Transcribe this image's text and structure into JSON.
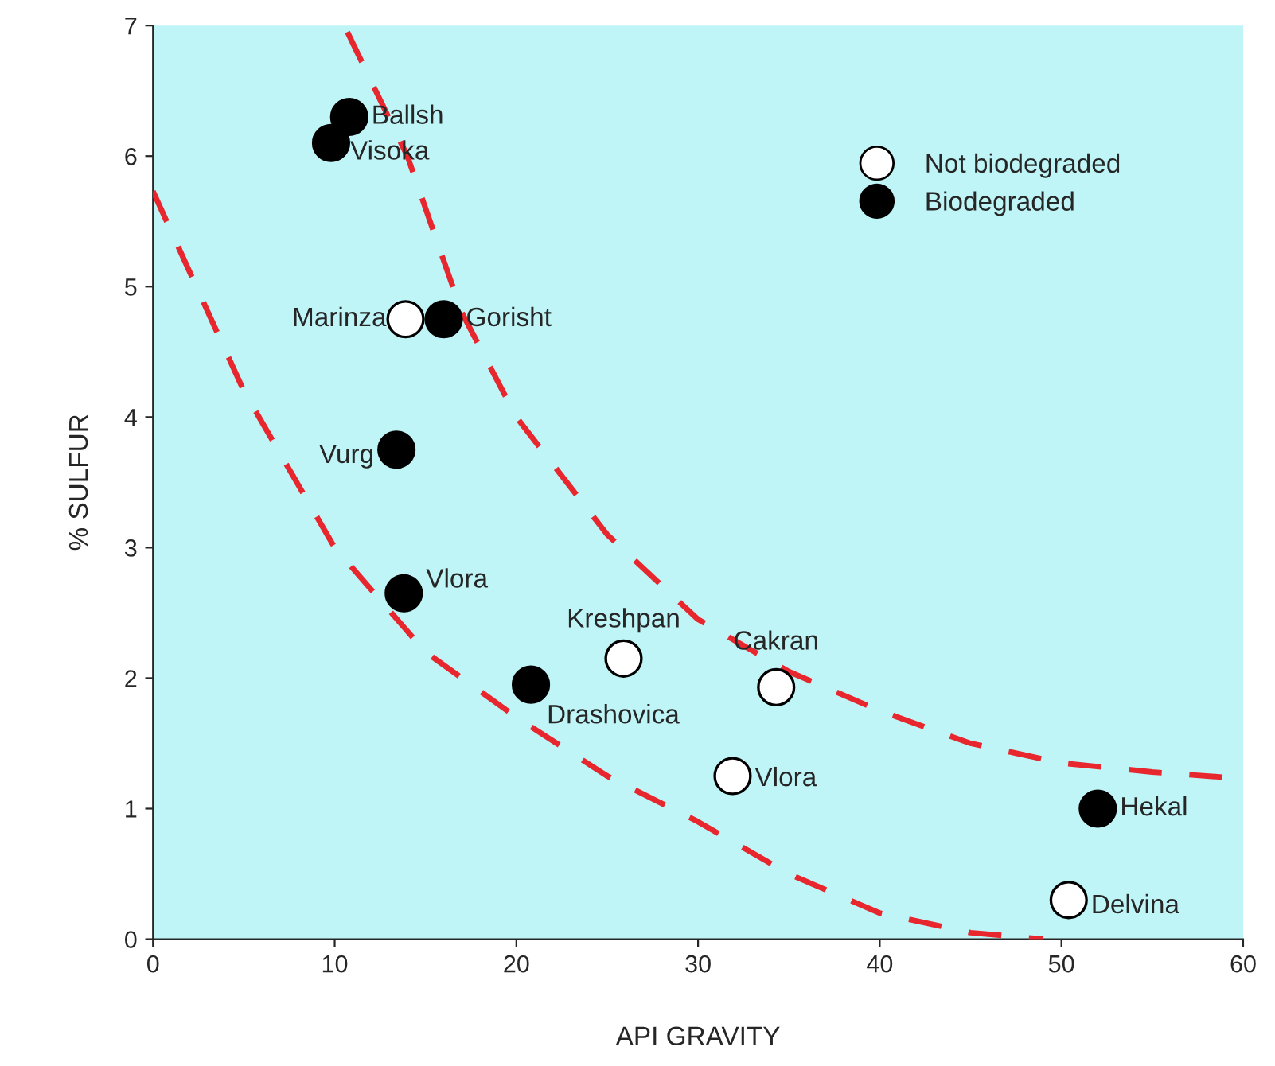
{
  "chart_data": {
    "type": "scatter",
    "xlabel": "API GRAVITY",
    "ylabel": "% SULFUR",
    "xlim": [
      0,
      60
    ],
    "ylim": [
      0,
      7
    ],
    "xticks": [
      0,
      10,
      20,
      30,
      40,
      50,
      60
    ],
    "yticks": [
      0,
      1,
      2,
      3,
      4,
      5,
      6,
      7
    ],
    "grid": false,
    "legend": "top right",
    "series": [
      {
        "name": "Not biodegraded",
        "color": "#ffffff",
        "x": [
          13.9,
          25.9,
          34.3,
          31.9,
          50.4
        ],
        "values": [
          4.75,
          2.15,
          1.93,
          1.25,
          0.3
        ]
      },
      {
        "name": "Biodegraded",
        "color": "#000000",
        "x": [
          10.8,
          9.8,
          16.0,
          13.4,
          13.8,
          20.8,
          52.0
        ],
        "values": [
          6.3,
          6.1,
          4.75,
          3.75,
          2.65,
          1.95,
          1.0
        ]
      },
      {
        "type": "line",
        "color": "#e8262e",
        "line_style": "dashed",
        "x": [
          0,
          5,
          10,
          15,
          20,
          25,
          30,
          35,
          40,
          45,
          49
        ],
        "values": [
          5.73,
          4.2,
          3.0,
          2.2,
          1.7,
          1.25,
          0.9,
          0.5,
          0.2,
          0.05,
          0
        ]
      },
      {
        "type": "line",
        "color": "#e8262e",
        "line_style": "dashed",
        "x": [
          10.7,
          14,
          17,
          20,
          25,
          30,
          35,
          40,
          45,
          50,
          55,
          59
        ],
        "values": [
          6.95,
          6.0,
          4.8,
          4.0,
          3.1,
          2.45,
          2.05,
          1.75,
          1.5,
          1.35,
          1.28,
          1.24
        ]
      }
    ],
    "annotations": [
      {
        "text": "Ballsh",
        "x": 10.8,
        "y": 6.3
      },
      {
        "text": "Visoka",
        "x": 9.8,
        "y": 6.1
      },
      {
        "text": "Marinza",
        "x": 13.9,
        "y": 4.75
      },
      {
        "text": "Gorisht",
        "x": 16.0,
        "y": 4.75
      },
      {
        "text": "Vurg",
        "x": 13.4,
        "y": 3.75
      },
      {
        "text": "Vlora",
        "x": 13.8,
        "y": 2.65
      },
      {
        "text": "Kreshpan",
        "x": 25.9,
        "y": 2.15
      },
      {
        "text": "Cakran",
        "x": 34.3,
        "y": 1.93
      },
      {
        "text": "Drashovica",
        "x": 20.8,
        "y": 1.95
      },
      {
        "text": "Vlora",
        "x": 31.9,
        "y": 1.25
      },
      {
        "text": "Hekal",
        "x": 52.0,
        "y": 1.0
      },
      {
        "text": "Delvina",
        "x": 50.4,
        "y": 0.3
      }
    ]
  }
}
